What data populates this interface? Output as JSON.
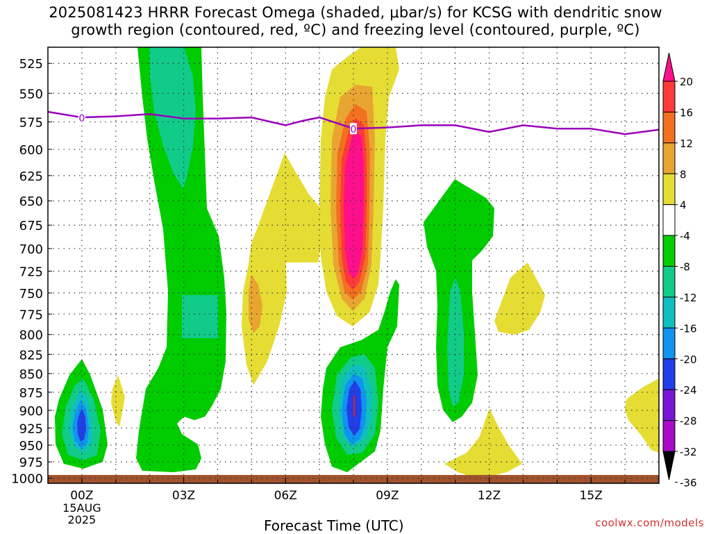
{
  "title_line1": "2025081423 HRRR Forecast Omega (shaded, μbar/s) for KCSG with dendritic snow",
  "title_line2": "growth region (contoured, red, ºC) and freezing level (contoured, purple, ºC)",
  "watermark": "coolwx.com/models",
  "chart_data": {
    "type": "heatmap",
    "xlabel": "Forecast Time (UTC)",
    "x_ticks": [
      {
        "hour": 0,
        "label": "00Z",
        "sub": [
          "15AUG",
          "2025"
        ]
      },
      {
        "hour": 3,
        "label": "03Z",
        "sub": []
      },
      {
        "hour": 6,
        "label": "06Z",
        "sub": []
      },
      {
        "hour": 9,
        "label": "09Z",
        "sub": []
      },
      {
        "hour": 12,
        "label": "12Z",
        "sub": []
      },
      {
        "hour": 15,
        "label": "15Z",
        "sub": []
      }
    ],
    "xlim_hours": [
      -1,
      17
    ],
    "y_ticks_hpa": [
      525,
      550,
      575,
      600,
      625,
      650,
      675,
      700,
      725,
      750,
      775,
      800,
      825,
      850,
      875,
      900,
      925,
      950,
      975,
      1000
    ],
    "ylim_hpa": [
      512,
      1008
    ],
    "y_scale": "log-pressure",
    "grid": "dotted",
    "colorbar": {
      "levels": [
        -36,
        -32,
        -28,
        -24,
        -20,
        -16,
        -12,
        -8,
        -4,
        4,
        8,
        12,
        16,
        20
      ],
      "labels": [
        "20",
        "16",
        "12",
        "8",
        "4",
        "-4",
        "-8",
        "-12",
        "-16",
        "-20",
        "-24",
        "-28",
        "-32",
        "-36"
      ],
      "colors_top_to_bottom": [
        "#ff0f8c",
        "#ff3a3a",
        "#f2701f",
        "#e8a531",
        "#e5dd34",
        "#ffffff",
        "#00cc00",
        "#11cc88",
        "#0fbfbf",
        "#0f94ef",
        "#223ee8",
        "#7a15d6",
        "#a90ac8",
        "#aaaaaa",
        "#000000"
      ]
    },
    "freezing_level": {
      "label": "0",
      "color": "#9900bb",
      "points": [
        [
          -1,
          566
        ],
        [
          0,
          571
        ],
        [
          1,
          570
        ],
        [
          2,
          568
        ],
        [
          3,
          572
        ],
        [
          4,
          572
        ],
        [
          5,
          571
        ],
        [
          6,
          578
        ],
        [
          6.5,
          574
        ],
        [
          7,
          571
        ],
        [
          8,
          581
        ],
        [
          9,
          580
        ],
        [
          10,
          578
        ],
        [
          11,
          578
        ],
        [
          12,
          584
        ],
        [
          13,
          578
        ],
        [
          14,
          581
        ],
        [
          15,
          581
        ],
        [
          16,
          586
        ],
        [
          17,
          582
        ]
      ]
    },
    "omega_regions": [
      {
        "value_range": [
          -8,
          -4
        ],
        "color": "#00cc00",
        "desc": "green"
      },
      {
        "value_range": [
          4,
          8
        ],
        "color": "#e5dd34",
        "desc": "yellow"
      }
    ]
  }
}
